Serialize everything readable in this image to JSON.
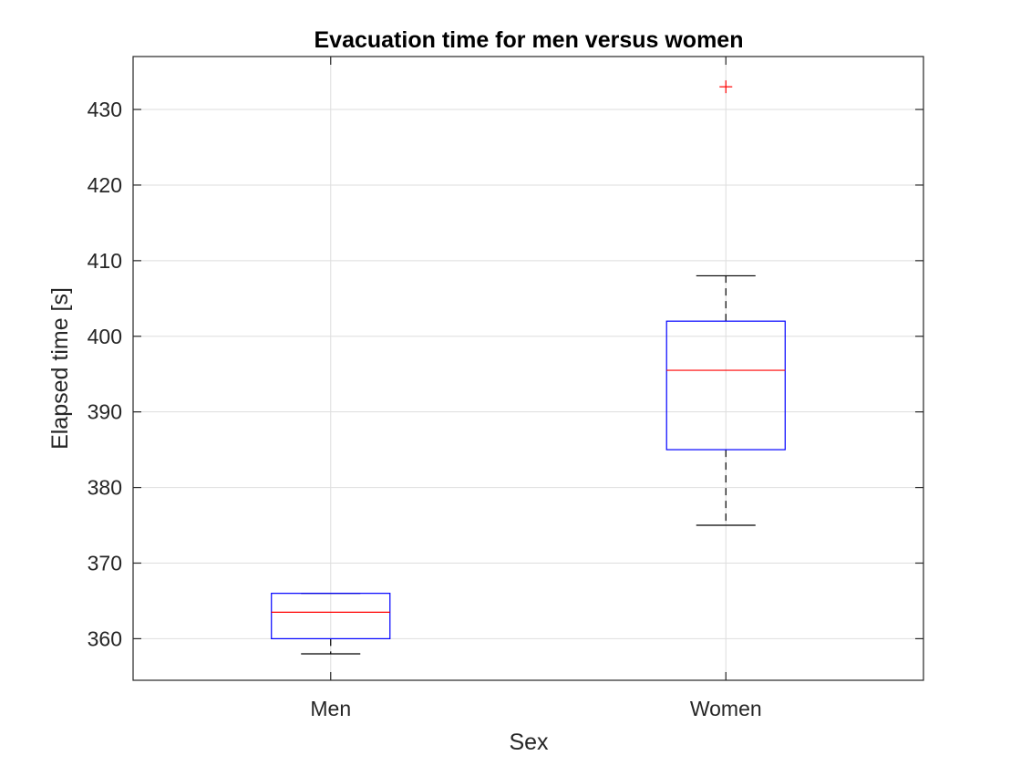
{
  "chart_data": {
    "type": "box",
    "title": "Evacuation time for men versus women",
    "xlabel": "Sex",
    "ylabel": "Elapsed time [s]",
    "categories": [
      "Men",
      "Women"
    ],
    "ylim": [
      354.5,
      437
    ],
    "yticks": [
      360,
      370,
      380,
      390,
      400,
      410,
      420,
      430
    ],
    "grid": true,
    "boxes": [
      {
        "name": "Men",
        "whisker_low": 358,
        "q1": 360,
        "median": 363.5,
        "q3": 366,
        "whisker_high": 366,
        "outliers": []
      },
      {
        "name": "Women",
        "whisker_low": 375,
        "q1": 385,
        "median": 395.5,
        "q3": 402,
        "whisker_high": 408,
        "outliers": [
          433
        ]
      }
    ],
    "colors": {
      "box": "#0000ff",
      "median": "#ff0000",
      "whisker": "#000000",
      "outlier": "#ff0000",
      "grid": "#dedede",
      "axes": "#262626"
    }
  }
}
